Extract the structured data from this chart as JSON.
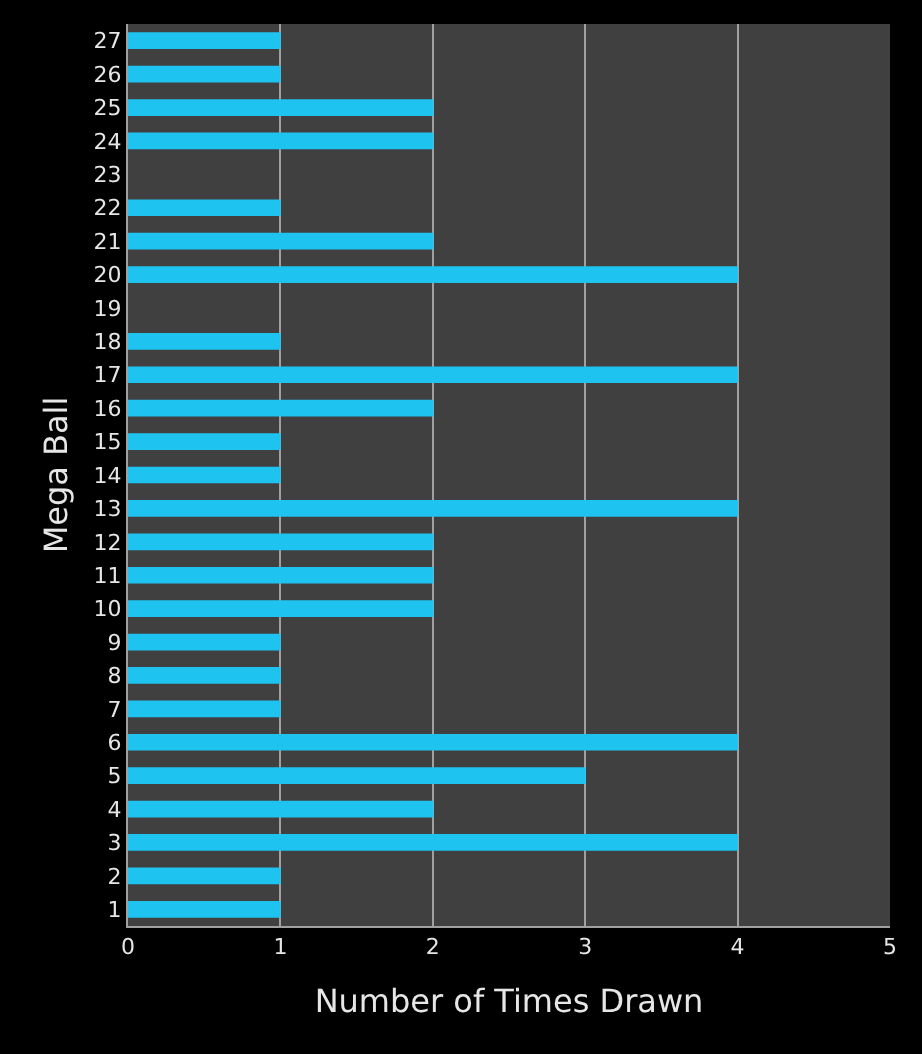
{
  "chart_data": {
    "type": "bar",
    "orientation": "horizontal",
    "xlabel": "Number of Times Drawn",
    "ylabel": "Mega Ball",
    "categories": [
      "27",
      "26",
      "25",
      "24",
      "23",
      "22",
      "21",
      "20",
      "19",
      "18",
      "17",
      "16",
      "15",
      "14",
      "13",
      "12",
      "11",
      "10",
      "9",
      "8",
      "7",
      "6",
      "5",
      "4",
      "3",
      "2",
      "1"
    ],
    "values": [
      1,
      1,
      2,
      2,
      0,
      1,
      2,
      4,
      0,
      1,
      4,
      2,
      1,
      1,
      4,
      2,
      2,
      2,
      1,
      1,
      1,
      4,
      3,
      2,
      4,
      1,
      1
    ],
    "color": "#1ec3f0",
    "xlim": [
      0,
      5
    ],
    "xticks": [
      0,
      1,
      2,
      3,
      4,
      5
    ],
    "grid": "x"
  }
}
